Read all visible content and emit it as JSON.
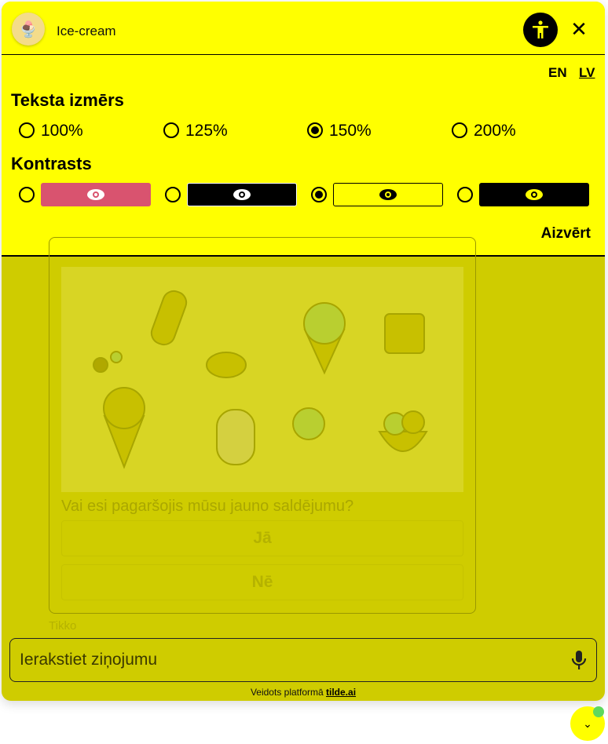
{
  "header": {
    "title": "Ice-cream",
    "accessibility_icon": "accessibility-icon",
    "close_icon": "close-icon"
  },
  "accessibility": {
    "languages": [
      "EN",
      "LV"
    ],
    "active_language": "LV",
    "text_size": {
      "heading": "Teksta izmērs",
      "options": [
        "100%",
        "125%",
        "150%",
        "200%"
      ],
      "selected": "150%"
    },
    "contrast": {
      "heading": "Kontrasts",
      "options": [
        {
          "bg": "#d9536f",
          "eye": "#ffffff"
        },
        {
          "bg": "#000000",
          "eye": "#ffffff"
        },
        {
          "bg": "#ffff00",
          "eye": "#000000"
        },
        {
          "bg": "#000000",
          "eye": "#ffff00"
        }
      ],
      "selected_index": 2
    },
    "close_label": "Aizvērt"
  },
  "chat": {
    "question": "Vai esi pagaršojis mūsu jauno saldējumu?",
    "buttons": [
      "Jā",
      "Nē"
    ],
    "timestamp": "Tikko"
  },
  "input": {
    "placeholder": "Ierakstiet ziņojumu",
    "mic_icon": "microphone-icon"
  },
  "footer": {
    "text": "Veidots platformā",
    "link": "tilde.ai"
  },
  "colors": {
    "accent": "#ffff00",
    "background": "#cfcc00",
    "online": "#5ed85e"
  }
}
